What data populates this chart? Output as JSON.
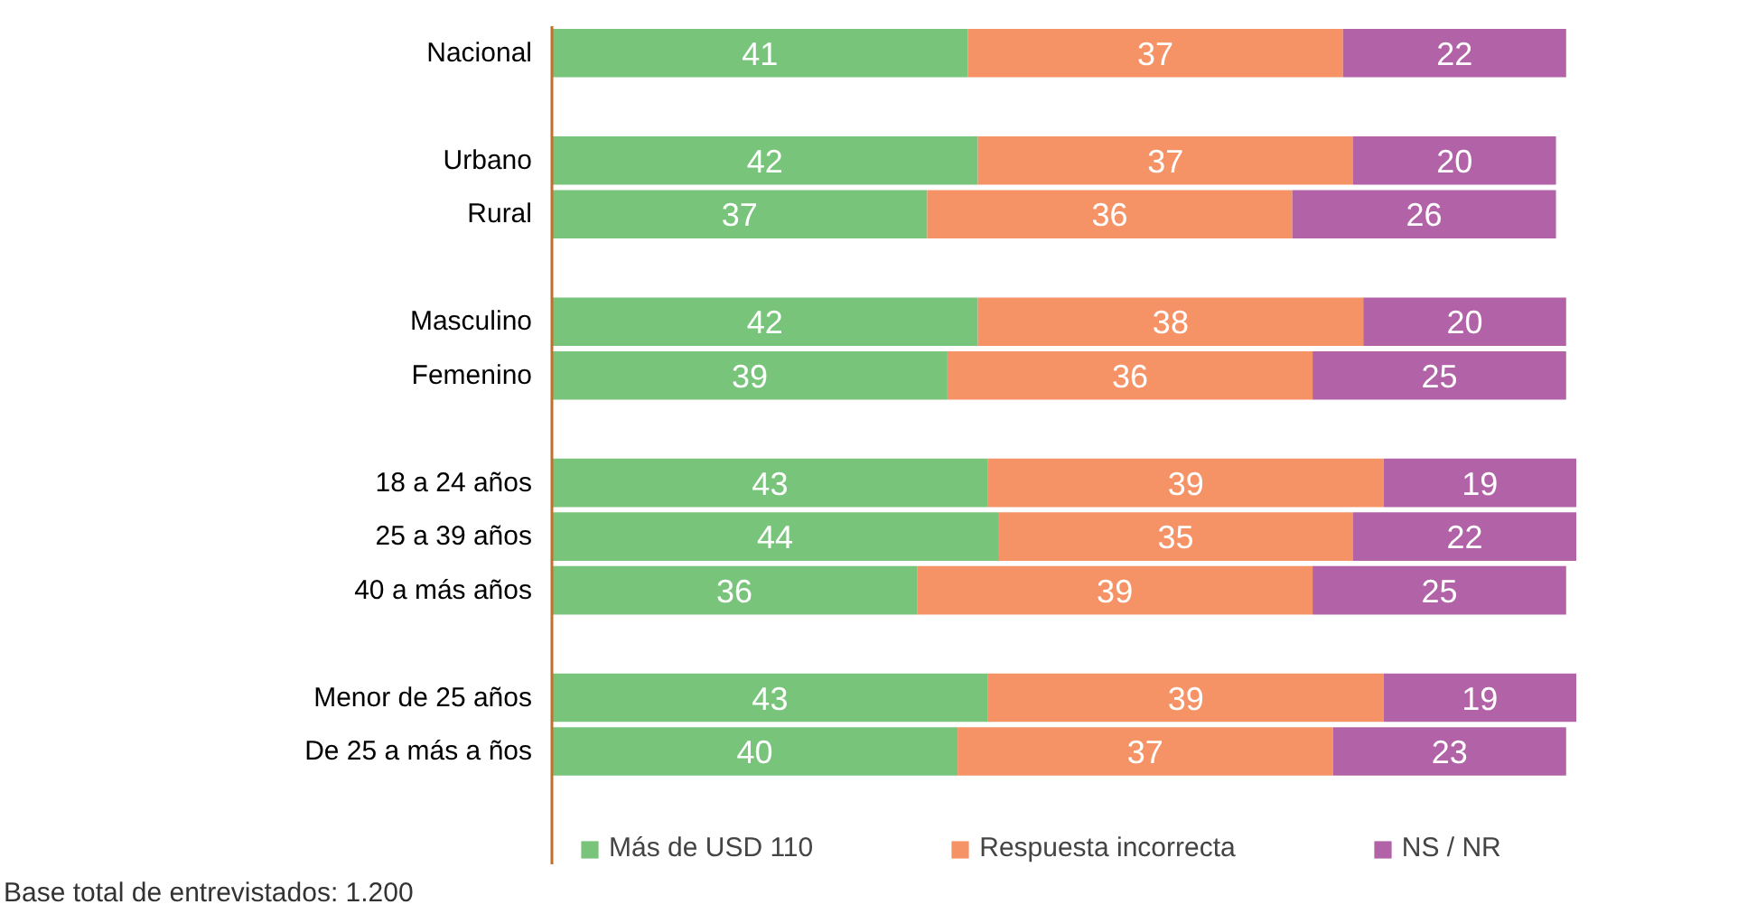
{
  "chart_data": {
    "type": "bar",
    "orientation": "horizontal",
    "stacked": true,
    "data_labels": true,
    "legend": "bottom",
    "grid": false,
    "categories": [
      "Nacional",
      null,
      "Urbano",
      "Rural",
      null,
      "Masculino",
      "Femenino",
      null,
      "18 a 24 años",
      "25 a 39 años",
      "40 a más años",
      null,
      "Menor de 25 años",
      "De 25 a más a ños"
    ],
    "series": [
      {
        "name": "Más de USD 110",
        "color": "#78c47b",
        "values": [
          41,
          null,
          42,
          37,
          null,
          42,
          39,
          null,
          43,
          44,
          36,
          null,
          43,
          40
        ]
      },
      {
        "name": "Respuesta incorrecta",
        "color": "#f69366",
        "values": [
          37,
          null,
          37,
          36,
          null,
          38,
          36,
          null,
          39,
          35,
          39,
          null,
          39,
          37
        ]
      },
      {
        "name": "NS / NR",
        "color": "#b263a8",
        "values": [
          22,
          null,
          20,
          26,
          null,
          20,
          25,
          null,
          19,
          22,
          25,
          null,
          19,
          23
        ]
      }
    ],
    "annotations": [
      "Base total de entrevistados: 1.200"
    ]
  }
}
